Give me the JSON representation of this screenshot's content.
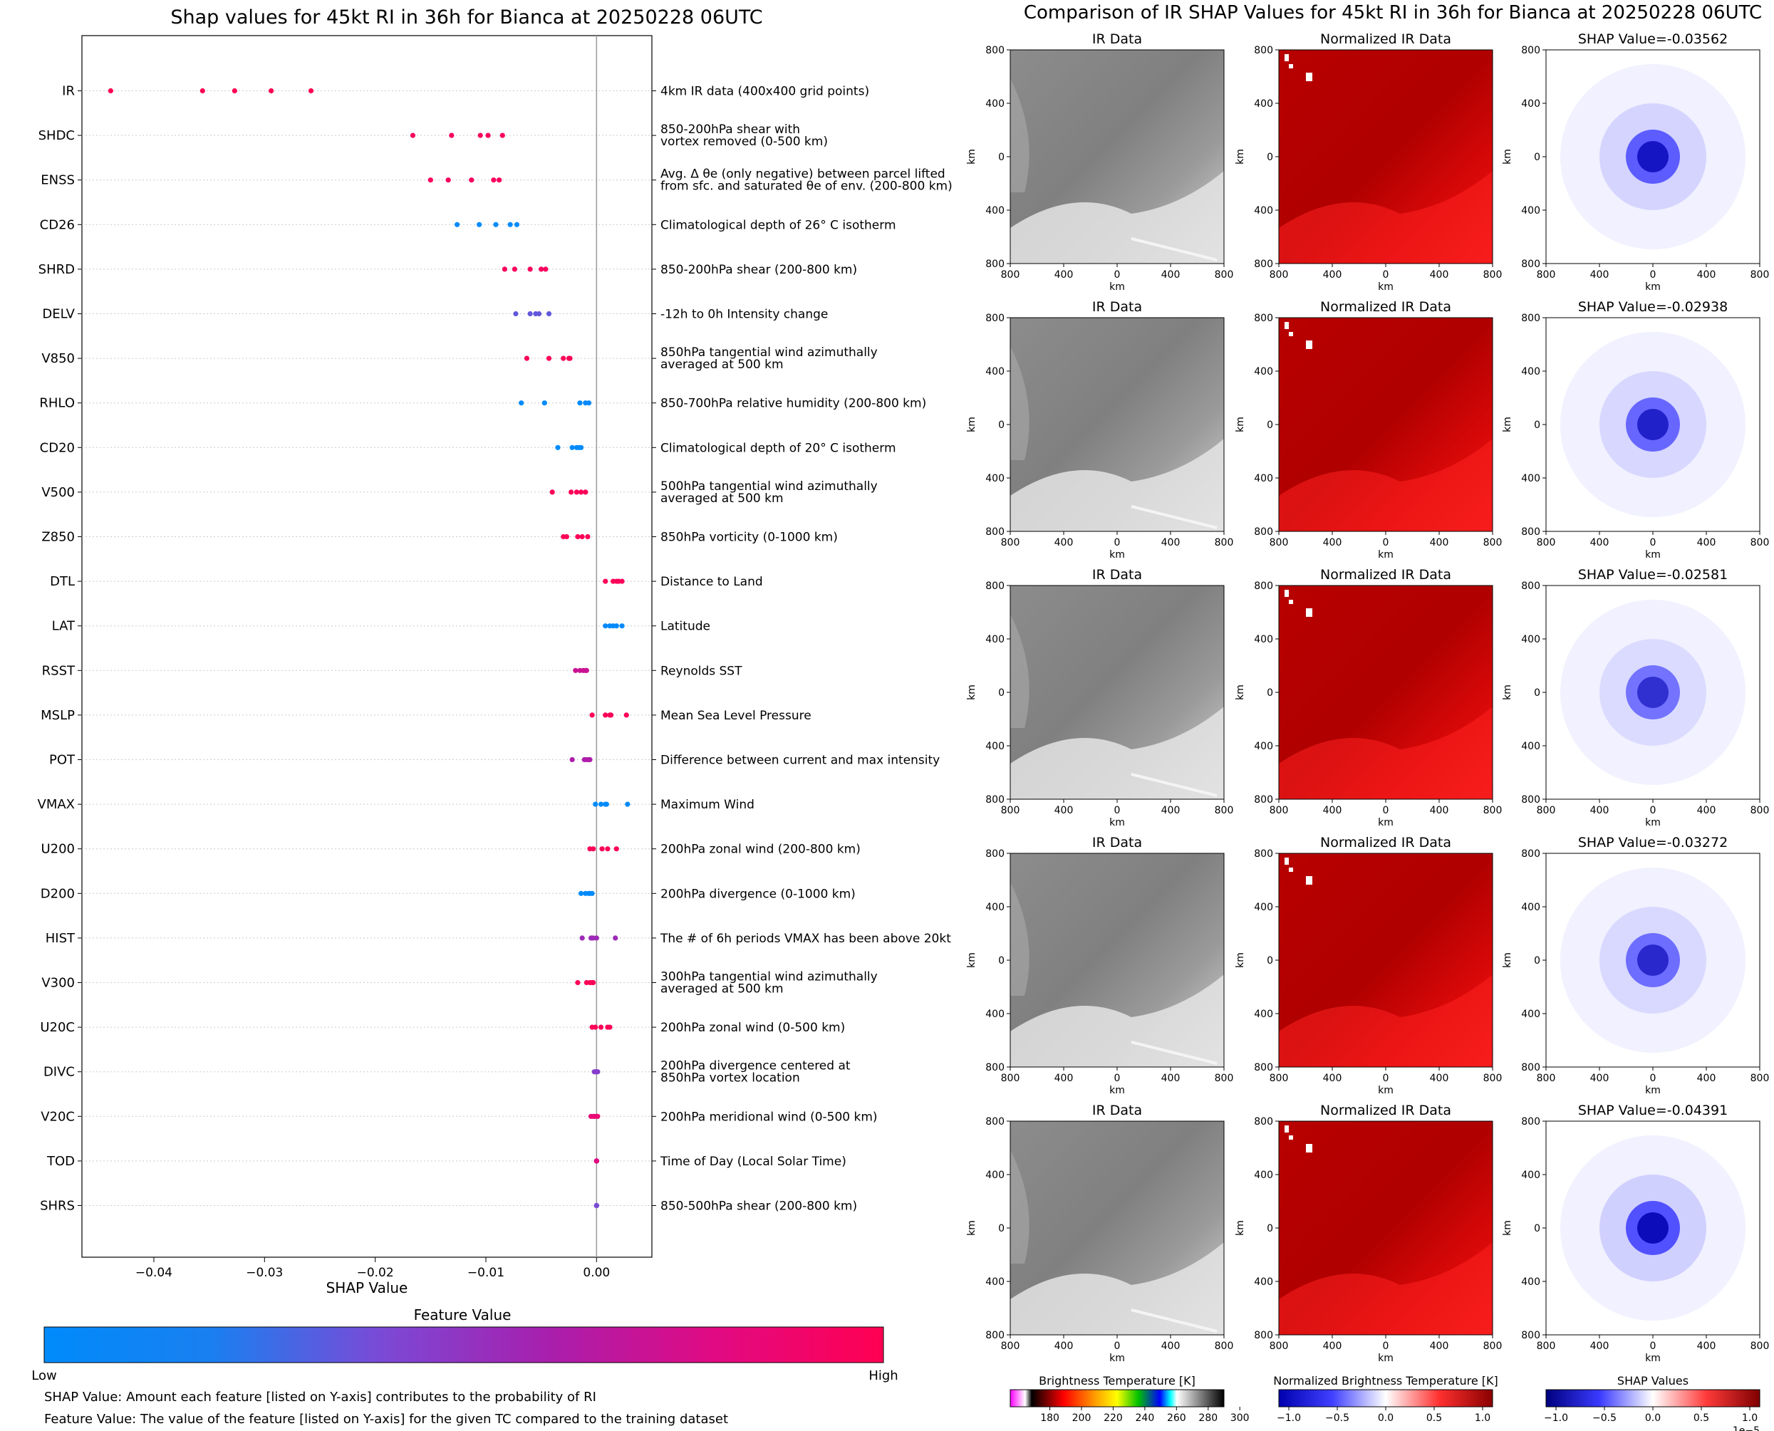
{
  "left_title": "Shap values for 45kt RI in 36h for Bianca at 20250228 06UTC",
  "right_title": "Comparison of IR SHAP Values for 45kt RI in 36h for Bianca at 20250228 06UTC",
  "chart_data": [
    {
      "type": "scatter",
      "title": "Shap values for 45kt RI in 36h for Bianca at 20250228 06UTC",
      "xlabel": "SHAP Value",
      "xlim": [
        -0.0465,
        0.005
      ],
      "x_ticks": [
        "−0.04",
        "−0.03",
        "−0.02",
        "−0.01",
        "0.00"
      ],
      "x_tick_values": [
        -0.04,
        -0.03,
        -0.02,
        -0.01,
        0.0
      ],
      "zero_line": 0.0,
      "features": [
        {
          "name": "IR",
          "desc": [
            "4km IR data (400x400 grid points)"
          ],
          "values": [
            -0.0439,
            -0.0356,
            -0.0327,
            -0.0294,
            -0.0258
          ],
          "fv": [
            1,
            1,
            1,
            1,
            1
          ]
        },
        {
          "name": "SHDC",
          "desc": [
            "850-200hPa shear with",
            "vortex removed (0-500 km)"
          ],
          "values": [
            -0.0166,
            -0.0131,
            -0.0105,
            -0.0098,
            -0.0085
          ],
          "fv": [
            0.95,
            0.95,
            0.95,
            0.95,
            0.95
          ]
        },
        {
          "name": "ENSS",
          "desc": [
            "Avg. Δ θe (only negative) between parcel lifted",
            "from sfc. and saturated θe of env. (200-800 km)"
          ],
          "values": [
            -0.015,
            -0.0134,
            -0.0113,
            -0.0093,
            -0.0088
          ],
          "fv": [
            0.95,
            0.95,
            0.95,
            0.95,
            0.95
          ]
        },
        {
          "name": "CD26",
          "desc": [
            "Climatological depth of 26° C isotherm"
          ],
          "values": [
            -0.0126,
            -0.0106,
            -0.0091,
            -0.0078,
            -0.0072
          ],
          "fv": [
            0,
            0,
            0,
            0,
            0
          ]
        },
        {
          "name": "SHRD",
          "desc": [
            "850-200hPa shear (200-800 km)"
          ],
          "values": [
            -0.0083,
            -0.0074,
            -0.006,
            -0.005,
            -0.0046
          ],
          "fv": [
            0.95,
            0.95,
            0.95,
            0.95,
            0.95
          ]
        },
        {
          "name": "DELV",
          "desc": [
            "-12h to 0h Intensity change"
          ],
          "values": [
            -0.0073,
            -0.006,
            -0.0055,
            -0.0052,
            -0.0043
          ],
          "fv": [
            0.35,
            0.35,
            0.35,
            0.35,
            0.35
          ]
        },
        {
          "name": "V850",
          "desc": [
            "850hPa tangential wind azimuthally",
            "averaged at 500 km"
          ],
          "values": [
            -0.0063,
            -0.0043,
            -0.003,
            -0.0025,
            -0.0024
          ],
          "fv": [
            0.97,
            0.97,
            0.97,
            0.97,
            0.97
          ]
        },
        {
          "name": "RHLO",
          "desc": [
            "850-700hPa relative humidity (200-800 km)"
          ],
          "values": [
            -0.0068,
            -0.0047,
            -0.0015,
            -0.001,
            -0.0007
          ],
          "fv": [
            0.02,
            0.02,
            0.02,
            0.02,
            0.02
          ]
        },
        {
          "name": "CD20",
          "desc": [
            "Climatological depth of 20° C isotherm"
          ],
          "values": [
            -0.0035,
            -0.0022,
            -0.0018,
            -0.0016,
            -0.0014
          ],
          "fv": [
            0,
            0,
            0,
            0,
            0
          ]
        },
        {
          "name": "V500",
          "desc": [
            "500hPa tangential wind azimuthally",
            "averaged at 500 km"
          ],
          "values": [
            -0.004,
            -0.0023,
            -0.0018,
            -0.0014,
            -0.001
          ],
          "fv": [
            0.97,
            0.97,
            0.97,
            0.97,
            0.97
          ]
        },
        {
          "name": "Z850",
          "desc": [
            "850hPa vorticity (0-1000 km)"
          ],
          "values": [
            -0.003,
            -0.0027,
            -0.0017,
            -0.0013,
            -0.0008
          ],
          "fv": [
            0.97,
            0.97,
            0.97,
            0.97,
            0.97
          ]
        },
        {
          "name": "DTL",
          "desc": [
            "Distance to Land"
          ],
          "values": [
            0.0008,
            0.0015,
            0.0018,
            0.002,
            0.0023
          ],
          "fv": [
            0.97,
            0.97,
            0.97,
            0.97,
            0.97
          ]
        },
        {
          "name": "LAT",
          "desc": [
            "Latitude"
          ],
          "values": [
            0.0008,
            0.0012,
            0.0015,
            0.0018,
            0.0023
          ],
          "fv": [
            0.02,
            0.02,
            0.02,
            0.02,
            0.02
          ]
        },
        {
          "name": "RSST",
          "desc": [
            "Reynolds SST"
          ],
          "values": [
            -0.0019,
            -0.0015,
            -0.0012,
            -0.001,
            -0.0009
          ],
          "fv": [
            0.72,
            0.72,
            0.72,
            0.72,
            0.72
          ]
        },
        {
          "name": "MSLP",
          "desc": [
            "Mean Sea Level Pressure"
          ],
          "values": [
            -0.0004,
            0.0008,
            0.0012,
            0.0013,
            0.0027
          ],
          "fv": [
            0.97,
            0.97,
            0.97,
            0.97,
            0.97
          ]
        },
        {
          "name": "POT",
          "desc": [
            "Difference between current and max intensity"
          ],
          "values": [
            -0.0022,
            -0.0011,
            -0.0009,
            -0.0007,
            -0.0006
          ],
          "fv": [
            0.62,
            0.62,
            0.62,
            0.62,
            0.62
          ]
        },
        {
          "name": "VMAX",
          "desc": [
            "Maximum Wind"
          ],
          "values": [
            -0.0001,
            0.0004,
            0.0008,
            0.0009,
            0.0028
          ],
          "fv": [
            0.02,
            0.02,
            0.02,
            0.02,
            0.02
          ]
        },
        {
          "name": "U200",
          "desc": [
            "200hPa zonal wind (200-800 km)"
          ],
          "values": [
            -0.0006,
            -0.0003,
            0.0005,
            0.001,
            0.0018
          ],
          "fv": [
            0.97,
            0.97,
            0.97,
            0.97,
            0.97
          ]
        },
        {
          "name": "D200",
          "desc": [
            "200hPa divergence (0-1000 km)"
          ],
          "values": [
            -0.0014,
            -0.001,
            -0.0007,
            -0.0006,
            -0.0004
          ],
          "fv": [
            0.02,
            0.02,
            0.02,
            0.02,
            0.02
          ]
        },
        {
          "name": "HIST",
          "desc": [
            "The # of 6h periods VMAX has been above 20kt"
          ],
          "values": [
            -0.0013,
            -0.0005,
            -0.0003,
            0.0,
            0.0017
          ],
          "fv": [
            0.55,
            0.55,
            0.55,
            0.55,
            0.55
          ]
        },
        {
          "name": "V300",
          "desc": [
            "300hPa tangential wind azimuthally",
            "averaged at 500 km"
          ],
          "values": [
            -0.0017,
            -0.0009,
            -0.0006,
            -0.0004,
            -0.0003
          ],
          "fv": [
            0.97,
            0.97,
            0.97,
            0.97,
            0.97
          ]
        },
        {
          "name": "U20C",
          "desc": [
            "200hPa zonal wind (0-500 km)"
          ],
          "values": [
            -0.0004,
            -0.0001,
            0.0004,
            0.001,
            0.0012
          ],
          "fv": [
            0.97,
            0.97,
            0.97,
            0.97,
            0.97
          ]
        },
        {
          "name": "DIVC",
          "desc": [
            "200hPa divergence centered at",
            "850hPa vortex location"
          ],
          "values": [
            -0.0002,
            -0.0001,
            0.0,
            0.0,
            0.0001
          ],
          "fv": [
            0.45,
            0.45,
            0.45,
            0.45,
            0.45
          ]
        },
        {
          "name": "V20C",
          "desc": [
            "200hPa meridional wind (0-500 km)"
          ],
          "values": [
            -0.0005,
            -0.0003,
            -0.0002,
            0.0,
            0.0001
          ],
          "fv": [
            0.85,
            0.85,
            0.85,
            0.85,
            0.85
          ]
        },
        {
          "name": "TOD",
          "desc": [
            "Time of Day (Local Solar Time)"
          ],
          "values": [
            0.0,
            0.0,
            0.0,
            0.0,
            0.0
          ],
          "fv": [
            0.8,
            0.8,
            0.8,
            0.8,
            0.8
          ]
        },
        {
          "name": "SHRS",
          "desc": [
            "850-500hPa shear (200-800 km)"
          ],
          "values": [
            0.0,
            0.0,
            0.0,
            0.0,
            0.0
          ],
          "fv": [
            0.4,
            0.4,
            0.4,
            0.4,
            0.4
          ]
        }
      ]
    },
    {
      "type": "heatmap",
      "title": "Comparison of IR SHAP Values for 45kt RI in 36h for Bianca at 20250228 06UTC",
      "panel_titles": [
        "IR Data",
        "Normalized IR Data"
      ],
      "shap_titles": [
        "SHAP Value=-0.03562",
        "SHAP Value=-0.02938",
        "SHAP Value=-0.02581",
        "SHAP Value=-0.03272",
        "SHAP Value=-0.04391"
      ],
      "shap_core_intensity": [
        0.85,
        0.75,
        0.65,
        0.7,
        0.95
      ],
      "axis_label": "km",
      "x_ticks": [
        "800",
        "400",
        "0",
        "400",
        "800"
      ],
      "y_ticks": [
        "800",
        "400",
        "0",
        "400",
        "800"
      ],
      "colorbars": [
        {
          "label": "Brightness Temperature [K]",
          "ticks": [
            "180",
            "200",
            "220",
            "240",
            "260",
            "280",
            "300"
          ]
        },
        {
          "label": "Normalized Brightness Temperature [K]",
          "ticks": [
            "−1.0",
            "−0.5",
            "0.0",
            "0.5",
            "1.0"
          ]
        },
        {
          "label": "SHAP Values",
          "ticks": [
            "−1.0",
            "−0.5",
            "0.0",
            "0.5",
            "1.0"
          ],
          "exponent": "1e−5"
        }
      ]
    }
  ],
  "feature_colorbar": {
    "title": "Feature Value",
    "low": "Low",
    "high": "High",
    "low_color": "#008bfb",
    "high_color": "#ff0052"
  },
  "footnotes": [
    "SHAP Value: Amount each feature [listed on Y-axis] contributes to the probability of RI",
    "Feature Value: The value of the feature [listed on Y-axis] for the given TC compared to the training dataset"
  ]
}
